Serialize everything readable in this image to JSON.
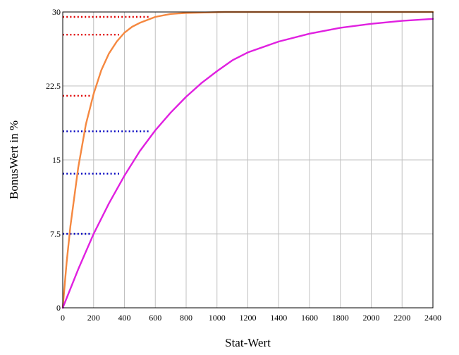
{
  "chart_data": {
    "type": "line",
    "xlabel": "Stat-Wert",
    "ylabel": "BonusWert in %",
    "xlim": [
      0,
      2400
    ],
    "ylim": [
      0,
      30
    ],
    "x_ticks": [
      0,
      200,
      400,
      600,
      800,
      1000,
      1200,
      1400,
      1600,
      1800,
      2000,
      2200,
      2400
    ],
    "y_ticks": [
      0,
      7.5,
      15,
      22.5,
      30
    ],
    "grid": true,
    "series": [
      {
        "color": "#f58840",
        "x": [
          0,
          25,
          50,
          100,
          150,
          200,
          250,
          300,
          350,
          400,
          450,
          500,
          600,
          700,
          800,
          1050,
          2400
        ],
        "y": [
          0,
          4.6,
          8.3,
          14.2,
          18.6,
          21.7,
          24.1,
          25.8,
          27.0,
          27.9,
          28.5,
          28.9,
          29.5,
          29.8,
          29.9,
          30.0,
          30.0
        ]
      },
      {
        "color": "#e020e0",
        "x": [
          0,
          100,
          200,
          300,
          400,
          500,
          600,
          700,
          800,
          900,
          1000,
          1100,
          1200,
          1400,
          1600,
          1800,
          2000,
          2200,
          2400
        ],
        "y": [
          0,
          3.9,
          7.5,
          10.6,
          13.4,
          15.9,
          18.0,
          19.8,
          21.4,
          22.8,
          24.0,
          25.1,
          25.9,
          27.0,
          27.8,
          28.4,
          28.8,
          29.1,
          29.3
        ]
      }
    ],
    "reference_lines": [
      {
        "color": "#e00000",
        "x": 190,
        "y": 21.5
      },
      {
        "color": "#e00000",
        "x": 380,
        "y": 27.7
      },
      {
        "color": "#e00000",
        "x": 570,
        "y": 29.5
      },
      {
        "color": "#0000c0",
        "x": 190,
        "y": 7.5
      },
      {
        "color": "#0000c0",
        "x": 380,
        "y": 13.6
      },
      {
        "color": "#0000c0",
        "x": 570,
        "y": 17.9
      }
    ]
  }
}
